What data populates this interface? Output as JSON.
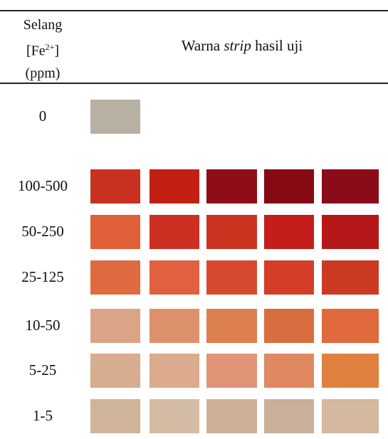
{
  "header": {
    "range_col": {
      "line1": "Selang",
      "line2": {
        "before": "[Fe",
        "sup": "2+",
        "after": "]"
      },
      "line3": "(ppm)"
    },
    "color_col": {
      "before": "Warna",
      "italic": "strip",
      "after": "hasil uji"
    }
  },
  "rows": [
    {
      "label": "0",
      "swatches": [
        "#b8b1a2"
      ]
    },
    {
      "label": "100-500",
      "swatches": [
        "#c8301f",
        "#c22015",
        "#8e0d16",
        "#860a13",
        "#8a0c18"
      ]
    },
    {
      "label": "50-250",
      "swatches": [
        "#e0603a",
        "#cc3020",
        "#cc3422",
        "#c41e1a",
        "#b51818"
      ]
    },
    {
      "label": "25-125",
      "swatches": [
        "#e06a3f",
        "#e06040",
        "#d84a30",
        "#d43e28",
        "#cc3a24"
      ]
    },
    {
      "label": "10-50",
      "swatches": [
        "#dca486",
        "#dc906c",
        "#dc8050",
        "#d86e40",
        "#e06a3c"
      ]
    },
    {
      "label": "5-25",
      "swatches": [
        "#d8ac8e",
        "#dcaa8c",
        "#e09478",
        "#e08860",
        "#e0803e"
      ]
    },
    {
      "label": "1-5",
      "swatches": [
        "#cfb49a",
        "#d4bca4",
        "#cfb096",
        "#c8b09a",
        "#d4b8a0"
      ]
    }
  ]
}
